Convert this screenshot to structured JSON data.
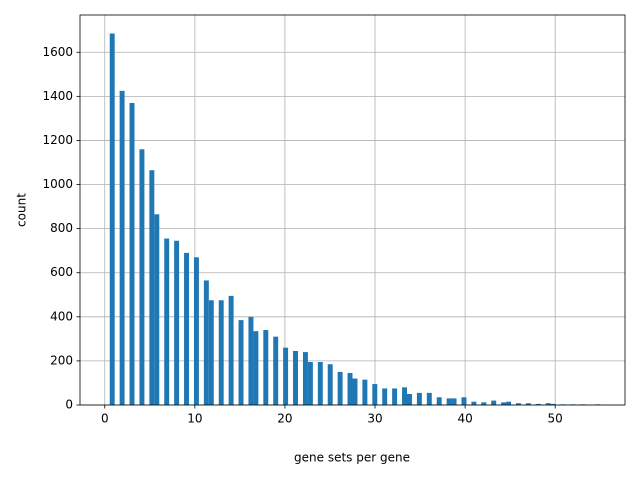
{
  "chart_data": {
    "type": "histogram",
    "xlabel": "gene sets per gene",
    "ylabel": "count",
    "color": "#1f77b4",
    "grid": true,
    "bins": [
      0,
      0.55,
      1.1,
      1.65,
      2.2,
      2.75,
      3.3,
      3.85,
      4.4,
      4.95,
      5.5,
      6.05,
      6.6,
      7.15,
      7.7,
      8.25,
      8.8,
      9.35,
      9.9,
      10.45,
      11,
      11.55,
      12.1,
      12.65,
      13.2,
      13.75,
      14.3,
      14.85,
      15.4,
      15.95,
      16.5,
      17.05,
      17.6,
      18.15,
      18.7,
      19.25,
      19.8,
      20.35,
      20.9,
      21.45,
      22,
      22.55,
      23.1,
      23.65,
      24.2,
      24.75,
      25.3,
      25.85,
      26.4,
      26.95,
      27.5,
      28.05,
      28.6,
      29.15,
      29.7,
      30.25,
      30.8,
      31.35,
      31.9,
      32.45,
      33,
      33.55,
      34.1,
      34.65,
      35.2,
      35.75,
      36.3,
      36.85,
      37.4,
      37.95,
      38.5,
      39.05,
      39.6,
      40.15,
      40.7,
      41.25,
      41.8,
      42.35,
      42.9,
      43.45,
      44,
      44.55,
      45.1,
      45.65,
      46.2,
      46.75,
      47.3,
      47.85,
      48.4,
      48.95,
      49.5,
      50.05,
      50.6,
      51.15,
      51.7,
      52.25,
      52.8,
      53.35,
      53.9,
      54.45,
      55
    ],
    "values": [
      0,
      1685,
      0,
      1425,
      0,
      1370,
      0,
      1160,
      0,
      1065,
      865,
      0,
      755,
      0,
      745,
      0,
      690,
      0,
      670,
      0,
      565,
      475,
      0,
      475,
      0,
      495,
      0,
      385,
      0,
      400,
      335,
      0,
      340,
      0,
      310,
      0,
      260,
      0,
      245,
      0,
      240,
      195,
      0,
      195,
      0,
      185,
      0,
      150,
      0,
      145,
      120,
      0,
      115,
      0,
      95,
      0,
      75,
      0,
      75,
      0,
      80,
      50,
      0,
      55,
      0,
      55,
      0,
      35,
      0,
      30,
      30,
      0,
      35,
      0,
      15,
      0,
      12,
      0,
      20,
      0,
      12,
      15,
      0,
      8,
      0,
      8,
      0,
      5,
      0,
      8,
      5,
      0,
      3,
      0,
      3,
      0,
      3,
      0,
      0,
      3
    ],
    "xlim": [
      -2.75,
      57.75
    ],
    "ylim": [
      0,
      1769
    ],
    "xticks": [
      0,
      10,
      20,
      30,
      40,
      50
    ],
    "yticks": [
      0,
      200,
      400,
      600,
      800,
      1000,
      1200,
      1400,
      1600
    ]
  }
}
